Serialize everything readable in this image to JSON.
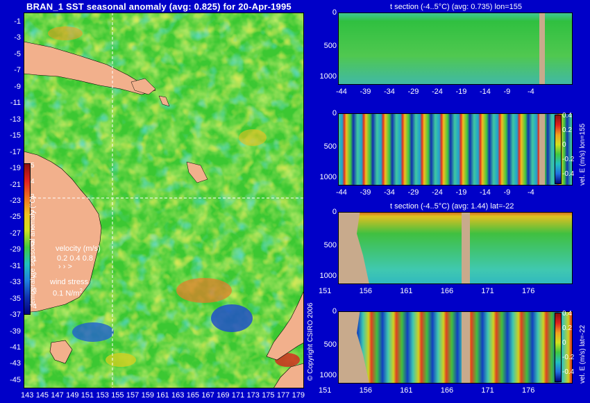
{
  "map": {
    "title": "BRAN_1  SST seasonal anomaly  (avg: 0.825)  for 20-Apr-1995",
    "lat_ticks": [
      "-1",
      "-3",
      "-5",
      "-7",
      "-9",
      "-11",
      "-13",
      "-15",
      "-17",
      "-19",
      "-21",
      "-23",
      "-25",
      "-27",
      "-29",
      "-31",
      "-33",
      "-35",
      "-37",
      "-39",
      "-41",
      "-43",
      "-45"
    ],
    "lon_ticks": [
      "143",
      "145",
      "147",
      "149",
      "151",
      "153",
      "155",
      "157",
      "159",
      "161",
      "163",
      "165",
      "167",
      "169",
      "171",
      "173",
      "175",
      "177",
      "179"
    ],
    "colorbar": {
      "label": "temperature seasonal anomaly (°C)",
      "ticks": [
        "5",
        "4",
        "3",
        "2",
        "1",
        "0",
        "-1",
        "-2",
        "-3",
        "-4"
      ]
    },
    "velocity_legend": {
      "label": "velocity (m/s)",
      "values": "0.2 0.4 0.8"
    },
    "wind_legend": {
      "label": "wind stress",
      "value": "0.1 N/m"
    },
    "copyright": "© Copyright CSIRO 2006",
    "colors": {
      "land": "#f2b08c",
      "guideline": "#ffffff"
    }
  },
  "panels": [
    {
      "subtitle": "t section (-4..5°C) (avg: 0.735) lon=155",
      "x_ticks": [
        "-44",
        "-39",
        "-34",
        "-29",
        "-24",
        "-19",
        "-14",
        "-9",
        "-4"
      ],
      "y_ticks": [
        "0",
        "500",
        "1000"
      ]
    },
    {
      "subtitle": "",
      "x_ticks": [
        "-44",
        "-39",
        "-34",
        "-29",
        "-24",
        "-19",
        "-14",
        "-9",
        "-4"
      ],
      "y_ticks": [
        "0",
        "500",
        "1000"
      ],
      "side_label": "vel. E (m/s) lon=155",
      "cbar_ticks": [
        "0.4",
        "0.2",
        "0",
        "-0.2",
        "-0.4"
      ]
    },
    {
      "subtitle": "t section (-4..5°C) (avg: 1.44) lat=-22",
      "x_ticks": [
        "151",
        "156",
        "161",
        "166",
        "171",
        "176"
      ],
      "y_ticks": [
        "0",
        "500",
        "1000"
      ]
    },
    {
      "subtitle": "",
      "x_ticks": [
        "151",
        "156",
        "161",
        "166",
        "171",
        "176"
      ],
      "y_ticks": [
        "0",
        "500",
        "1000"
      ],
      "side_label": "vel. E (m/s) lat=-22",
      "cbar_ticks": [
        "0.4",
        "0.2",
        "0",
        "-0.2",
        "-0.4"
      ]
    }
  ]
}
